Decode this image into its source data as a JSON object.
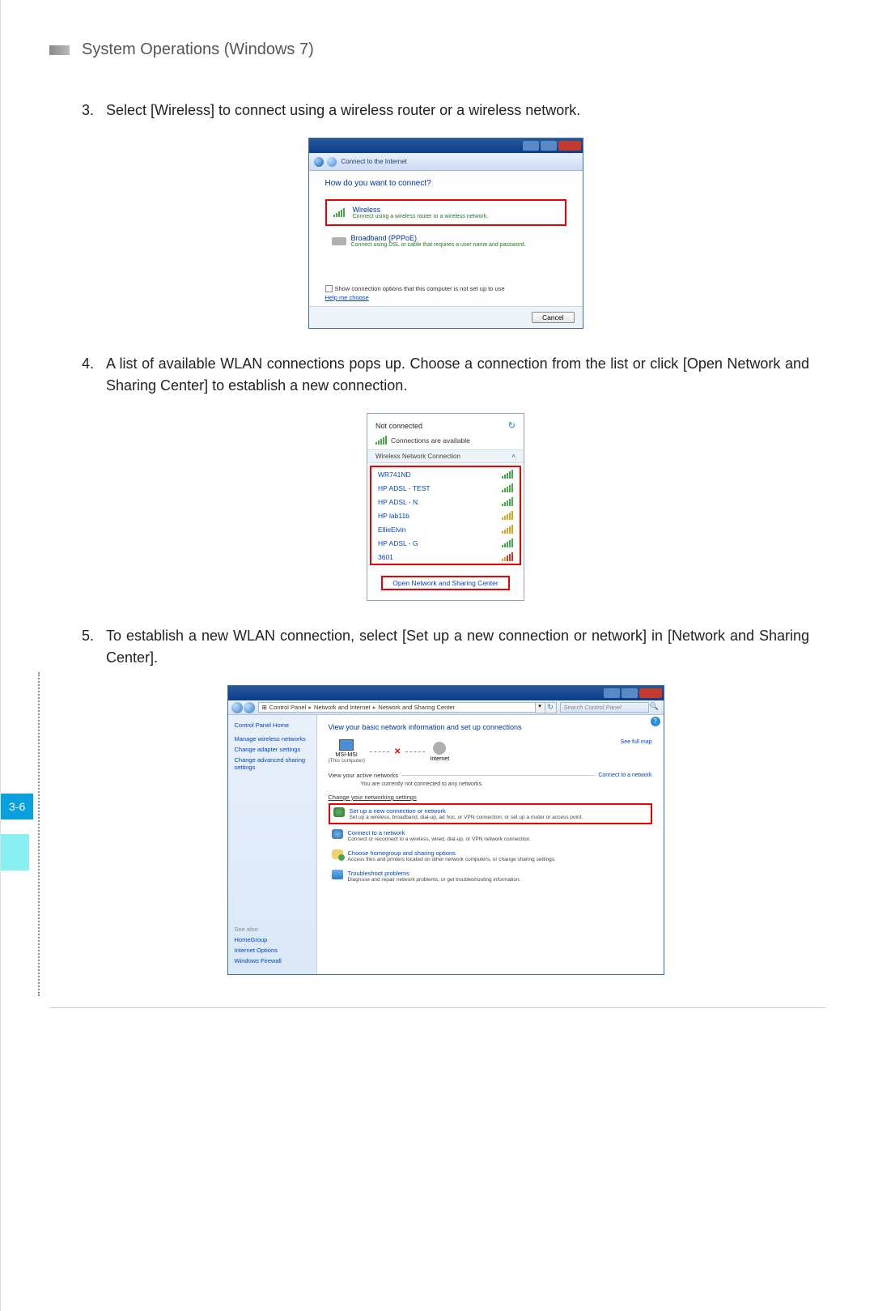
{
  "header": {
    "title": "System Operations (Windows 7)"
  },
  "page_number": "3-6",
  "step3": {
    "num": "3.",
    "text": "Select [Wireless] to connect using a wireless router or a wireless network."
  },
  "dialog1": {
    "crumb": "Connect to the Internet",
    "question": "How do you want to connect?",
    "wireless": {
      "title": "Wireless",
      "desc": "Connect using a wireless router or a wireless network."
    },
    "pppoe": {
      "title": "Broadband (PPPoE)",
      "desc": "Connect using DSL or cable that requires a user name and password."
    },
    "checkbox_label": "Show connection options that this computer is not set up to use",
    "help": "Help me choose",
    "cancel": "Cancel"
  },
  "step4": {
    "num": "4.",
    "text": "A list of available WLAN connections pops up. Choose a connection from the list or click [Open Network and Sharing Center] to establish a new connection."
  },
  "popup": {
    "status": "Not connected",
    "avail": "Connections are available",
    "section": "Wireless Network Connection",
    "networks": [
      {
        "name": "WR741ND",
        "sig": "g"
      },
      {
        "name": "HP ADSL - TEST",
        "sig": "g"
      },
      {
        "name": "HP ADSL - N",
        "sig": "g"
      },
      {
        "name": "HP lab11b",
        "sig": "y"
      },
      {
        "name": "EllieElvin",
        "sig": "y"
      },
      {
        "name": "HP ADSL - G",
        "sig": "g"
      },
      {
        "name": "3601",
        "sig": "ry"
      }
    ],
    "open_link": "Open Network and Sharing Center"
  },
  "step5": {
    "num": "5.",
    "text": "To establish a new WLAN connection, select [Set up a new connection or network] in [Network and Sharing Center]."
  },
  "cpanel": {
    "breadcrumb": [
      "Control Panel",
      "Network and Internet",
      "Network and Sharing Center"
    ],
    "search_placeholder": "Search Control Panel",
    "side": {
      "home": "Control Panel Home",
      "links": [
        "Manage wireless networks",
        "Change adapter settings",
        "Change advanced sharing settings"
      ],
      "seealso": "See also",
      "bottom": [
        "HomeGroup",
        "Internet Options",
        "Windows Firewall"
      ]
    },
    "heading": "View your basic network information and set up connections",
    "full_map": "See full map",
    "node1": "MSI-MSI",
    "node1_sub": "(This computer)",
    "node2": "Internet",
    "active_label": "View your active networks",
    "connect_link": "Connect to a network",
    "not_connected": "You are currently not connected to any networks.",
    "change_heading": "Change your networking settings",
    "tasks": [
      {
        "title": "Set up a new connection or network",
        "desc": "Set up a wireless, broadband, dial-up, ad hoc, or VPN connection; or set up a router or access point.",
        "sel": true,
        "icon": "gear"
      },
      {
        "title": "Connect to a network",
        "desc": "Connect or reconnect to a wireless, wired, dial-up, or VPN network connection.",
        "icon": "net"
      },
      {
        "title": "Choose homegroup and sharing options",
        "desc": "Access files and printers located on other network computers, or change sharing settings.",
        "icon": "home"
      },
      {
        "title": "Troubleshoot problems",
        "desc": "Diagnose and repair network problems, or get troubleshooting information.",
        "icon": "flag"
      }
    ]
  }
}
